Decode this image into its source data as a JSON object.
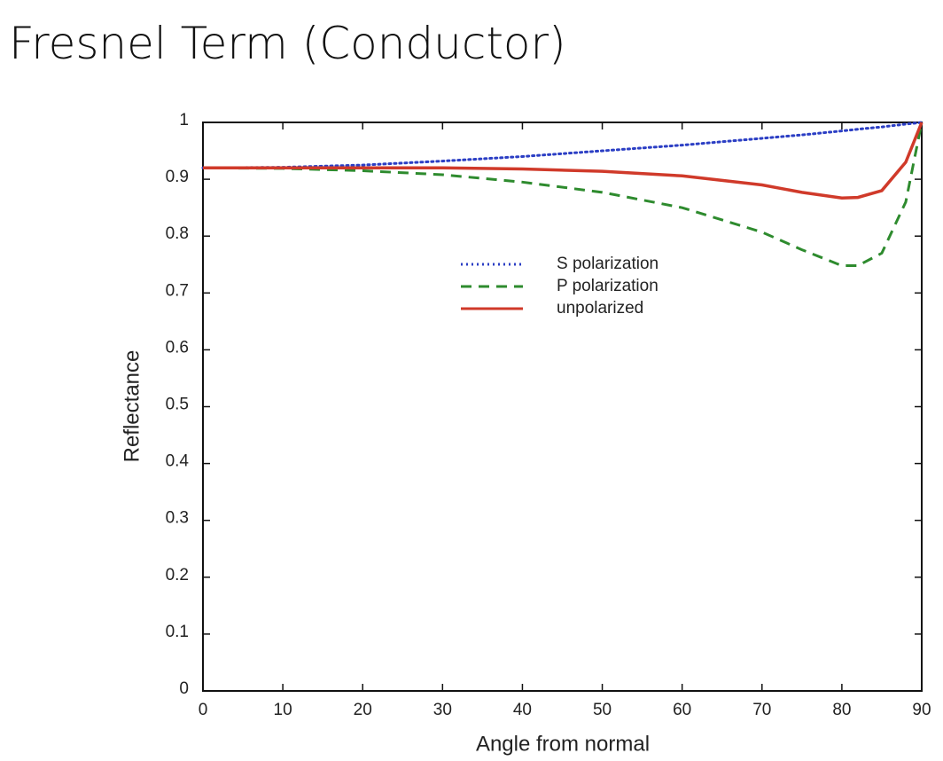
{
  "chart_data": {
    "type": "line",
    "title": "Fresnel Term (Conductor)",
    "x_label": "Angle from normal",
    "y_label": "Reflectance",
    "x": [
      0,
      10,
      20,
      30,
      40,
      50,
      60,
      70,
      75,
      80,
      82,
      85,
      88,
      90
    ],
    "series": [
      {
        "name": "S polarization",
        "color": "#2b3ec4",
        "style": "dotted",
        "values": [
          0.92,
          0.921,
          0.925,
          0.932,
          0.94,
          0.95,
          0.96,
          0.972,
          0.978,
          0.985,
          0.988,
          0.992,
          0.997,
          1
        ]
      },
      {
        "name": "P polarization",
        "color": "#2e8b2e",
        "style": "dashed",
        "values": [
          0.92,
          0.919,
          0.915,
          0.908,
          0.895,
          0.877,
          0.85,
          0.807,
          0.776,
          0.748,
          0.748,
          0.77,
          0.86,
          1
        ]
      },
      {
        "name": "unpolarized",
        "color": "#d03a2a",
        "style": "solid",
        "values": [
          0.92,
          0.92,
          0.92,
          0.92,
          0.918,
          0.914,
          0.906,
          0.89,
          0.877,
          0.867,
          0.868,
          0.88,
          0.93,
          1
        ]
      }
    ],
    "xlim": [
      0,
      90
    ],
    "xticks": [
      0,
      10,
      20,
      30,
      40,
      50,
      60,
      70,
      80,
      90
    ],
    "ylim": [
      0,
      1
    ],
    "yticks": [
      0,
      0.1,
      0.2,
      0.3,
      0.4,
      0.5,
      0.6,
      0.7,
      0.8,
      0.9,
      1
    ],
    "legend": "center"
  }
}
